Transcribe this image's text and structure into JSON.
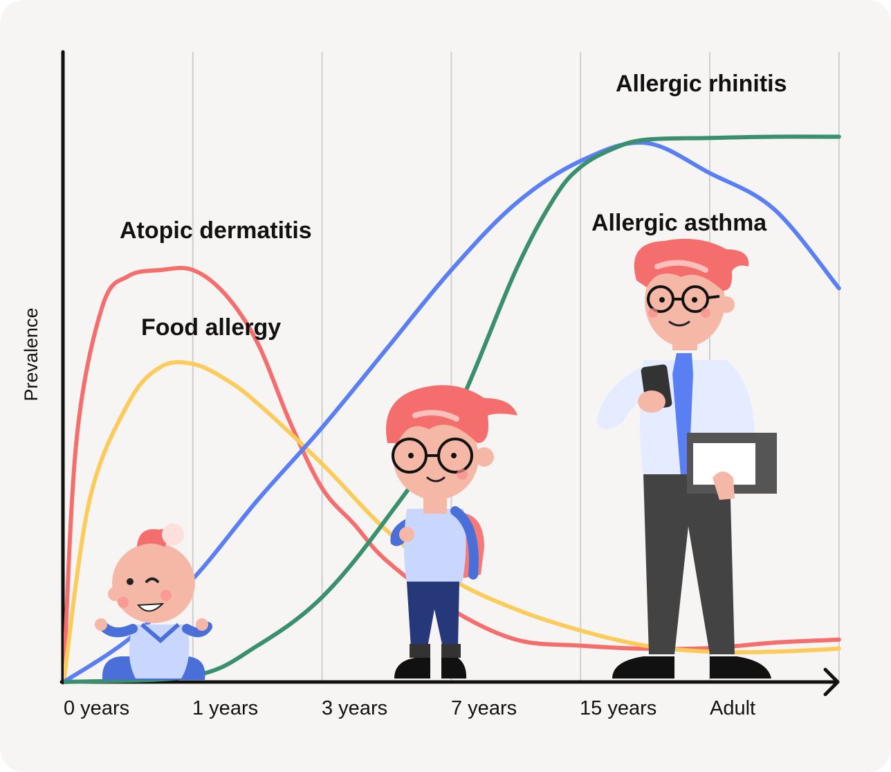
{
  "chart_data": {
    "type": "line",
    "title": "",
    "xlabel": "",
    "ylabel": "Prevalence",
    "categories": [
      "0 years",
      "1 years",
      "3 years",
      "7 years",
      "15 years",
      "Adult"
    ],
    "ylim": [
      0,
      100
    ],
    "grid": "vertical",
    "series": [
      {
        "name": "Atopic dermatitis",
        "color": "#f46e6e",
        "x": [
          0,
          0.1,
          0.3,
          0.5,
          0.75,
          1,
          1.25,
          1.5,
          1.75,
          2,
          2.25,
          2.5,
          3,
          3.5,
          4,
          4.5,
          5,
          5.5,
          6
        ],
        "values": [
          0,
          40,
          62,
          67,
          68,
          68,
          64,
          56,
          43,
          32,
          26,
          20,
          12,
          7,
          6,
          5.5,
          5.6,
          6.5,
          7
        ]
      },
      {
        "name": "Food allergy",
        "color": "#fbcb5c",
        "x": [
          0,
          0.2,
          0.5,
          0.75,
          1,
          1.25,
          1.5,
          2,
          2.5,
          3,
          3.5,
          4,
          4.5,
          5,
          5.5,
          6
        ],
        "values": [
          0,
          30,
          46,
          52,
          52.5,
          50,
          46,
          36,
          25,
          17,
          12,
          8.5,
          6,
          5,
          5,
          5.5
        ]
      },
      {
        "name": "Allergic asthma",
        "color": "#5a7ff2",
        "x": [
          0,
          0.5,
          1,
          1.5,
          2,
          2.5,
          3,
          3.5,
          4,
          4.5,
          5,
          5.5,
          6
        ],
        "values": [
          0,
          7,
          17,
          30,
          42,
          55,
          68,
          79,
          86,
          89,
          84,
          78,
          65
        ]
      },
      {
        "name": "Allergic rhinitis",
        "color": "#3a8f6e",
        "x": [
          0,
          1,
          1.5,
          2,
          2.5,
          3,
          3.5,
          3.8,
          4,
          4.25,
          4.5,
          5,
          5.5,
          6
        ],
        "values": [
          0,
          1,
          6,
          14,
          27,
          43,
          68,
          80,
          85,
          88,
          89.5,
          89.8,
          90,
          90
        ]
      }
    ]
  }
}
